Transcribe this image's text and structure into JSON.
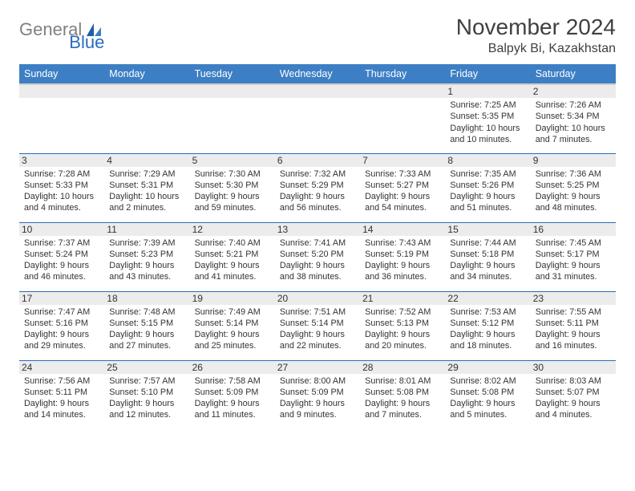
{
  "logo": {
    "word1": "General",
    "word2": "Blue",
    "word1_color": "#808080",
    "word2_color": "#2a6bbf"
  },
  "title": "November 2024",
  "location": "Balpyk Bi, Kazakhstan",
  "colors": {
    "header_bg": "#3d7fc4",
    "header_text": "#ffffff",
    "cell_border": "#2a6bbf",
    "daynum_bg": "#ececec",
    "body_text": "#333333",
    "page_bg": "#ffffff"
  },
  "font": {
    "title_size": 28,
    "location_size": 16,
    "dayhead_size": 12.5,
    "cell_size": 10.8
  },
  "weekdays": [
    "Sunday",
    "Monday",
    "Tuesday",
    "Wednesday",
    "Thursday",
    "Friday",
    "Saturday"
  ],
  "weeks": [
    [
      null,
      null,
      null,
      null,
      null,
      {
        "n": "1",
        "sr": "Sunrise: 7:25 AM",
        "ss": "Sunset: 5:35 PM",
        "dl": "Daylight: 10 hours and 10 minutes."
      },
      {
        "n": "2",
        "sr": "Sunrise: 7:26 AM",
        "ss": "Sunset: 5:34 PM",
        "dl": "Daylight: 10 hours and 7 minutes."
      }
    ],
    [
      {
        "n": "3",
        "sr": "Sunrise: 7:28 AM",
        "ss": "Sunset: 5:33 PM",
        "dl": "Daylight: 10 hours and 4 minutes."
      },
      {
        "n": "4",
        "sr": "Sunrise: 7:29 AM",
        "ss": "Sunset: 5:31 PM",
        "dl": "Daylight: 10 hours and 2 minutes."
      },
      {
        "n": "5",
        "sr": "Sunrise: 7:30 AM",
        "ss": "Sunset: 5:30 PM",
        "dl": "Daylight: 9 hours and 59 minutes."
      },
      {
        "n": "6",
        "sr": "Sunrise: 7:32 AM",
        "ss": "Sunset: 5:29 PM",
        "dl": "Daylight: 9 hours and 56 minutes."
      },
      {
        "n": "7",
        "sr": "Sunrise: 7:33 AM",
        "ss": "Sunset: 5:27 PM",
        "dl": "Daylight: 9 hours and 54 minutes."
      },
      {
        "n": "8",
        "sr": "Sunrise: 7:35 AM",
        "ss": "Sunset: 5:26 PM",
        "dl": "Daylight: 9 hours and 51 minutes."
      },
      {
        "n": "9",
        "sr": "Sunrise: 7:36 AM",
        "ss": "Sunset: 5:25 PM",
        "dl": "Daylight: 9 hours and 48 minutes."
      }
    ],
    [
      {
        "n": "10",
        "sr": "Sunrise: 7:37 AM",
        "ss": "Sunset: 5:24 PM",
        "dl": "Daylight: 9 hours and 46 minutes."
      },
      {
        "n": "11",
        "sr": "Sunrise: 7:39 AM",
        "ss": "Sunset: 5:23 PM",
        "dl": "Daylight: 9 hours and 43 minutes."
      },
      {
        "n": "12",
        "sr": "Sunrise: 7:40 AM",
        "ss": "Sunset: 5:21 PM",
        "dl": "Daylight: 9 hours and 41 minutes."
      },
      {
        "n": "13",
        "sr": "Sunrise: 7:41 AM",
        "ss": "Sunset: 5:20 PM",
        "dl": "Daylight: 9 hours and 38 minutes."
      },
      {
        "n": "14",
        "sr": "Sunrise: 7:43 AM",
        "ss": "Sunset: 5:19 PM",
        "dl": "Daylight: 9 hours and 36 minutes."
      },
      {
        "n": "15",
        "sr": "Sunrise: 7:44 AM",
        "ss": "Sunset: 5:18 PM",
        "dl": "Daylight: 9 hours and 34 minutes."
      },
      {
        "n": "16",
        "sr": "Sunrise: 7:45 AM",
        "ss": "Sunset: 5:17 PM",
        "dl": "Daylight: 9 hours and 31 minutes."
      }
    ],
    [
      {
        "n": "17",
        "sr": "Sunrise: 7:47 AM",
        "ss": "Sunset: 5:16 PM",
        "dl": "Daylight: 9 hours and 29 minutes."
      },
      {
        "n": "18",
        "sr": "Sunrise: 7:48 AM",
        "ss": "Sunset: 5:15 PM",
        "dl": "Daylight: 9 hours and 27 minutes."
      },
      {
        "n": "19",
        "sr": "Sunrise: 7:49 AM",
        "ss": "Sunset: 5:14 PM",
        "dl": "Daylight: 9 hours and 25 minutes."
      },
      {
        "n": "20",
        "sr": "Sunrise: 7:51 AM",
        "ss": "Sunset: 5:14 PM",
        "dl": "Daylight: 9 hours and 22 minutes."
      },
      {
        "n": "21",
        "sr": "Sunrise: 7:52 AM",
        "ss": "Sunset: 5:13 PM",
        "dl": "Daylight: 9 hours and 20 minutes."
      },
      {
        "n": "22",
        "sr": "Sunrise: 7:53 AM",
        "ss": "Sunset: 5:12 PM",
        "dl": "Daylight: 9 hours and 18 minutes."
      },
      {
        "n": "23",
        "sr": "Sunrise: 7:55 AM",
        "ss": "Sunset: 5:11 PM",
        "dl": "Daylight: 9 hours and 16 minutes."
      }
    ],
    [
      {
        "n": "24",
        "sr": "Sunrise: 7:56 AM",
        "ss": "Sunset: 5:11 PM",
        "dl": "Daylight: 9 hours and 14 minutes."
      },
      {
        "n": "25",
        "sr": "Sunrise: 7:57 AM",
        "ss": "Sunset: 5:10 PM",
        "dl": "Daylight: 9 hours and 12 minutes."
      },
      {
        "n": "26",
        "sr": "Sunrise: 7:58 AM",
        "ss": "Sunset: 5:09 PM",
        "dl": "Daylight: 9 hours and 11 minutes."
      },
      {
        "n": "27",
        "sr": "Sunrise: 8:00 AM",
        "ss": "Sunset: 5:09 PM",
        "dl": "Daylight: 9 hours and 9 minutes."
      },
      {
        "n": "28",
        "sr": "Sunrise: 8:01 AM",
        "ss": "Sunset: 5:08 PM",
        "dl": "Daylight: 9 hours and 7 minutes."
      },
      {
        "n": "29",
        "sr": "Sunrise: 8:02 AM",
        "ss": "Sunset: 5:08 PM",
        "dl": "Daylight: 9 hours and 5 minutes."
      },
      {
        "n": "30",
        "sr": "Sunrise: 8:03 AM",
        "ss": "Sunset: 5:07 PM",
        "dl": "Daylight: 9 hours and 4 minutes."
      }
    ]
  ]
}
